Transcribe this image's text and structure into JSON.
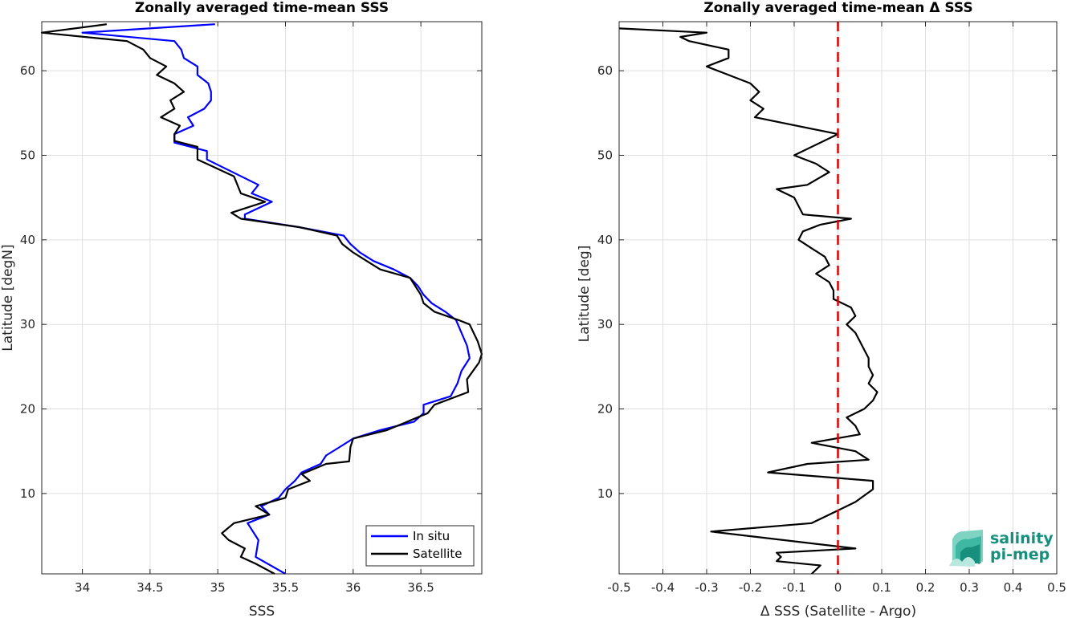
{
  "chart_data": [
    {
      "type": "line",
      "title": "Zonally averaged time-mean SSS",
      "xlabel": "SSS",
      "ylabel": "Latitude [degN]",
      "xlim": [
        33.7,
        36.95
      ],
      "ylim": [
        0.5,
        65.8
      ],
      "xticks": [
        34,
        34.5,
        35,
        35.5,
        36,
        36.5
      ],
      "xtick_labels": [
        "34",
        "34.5",
        "35",
        "35.5",
        "36",
        "36.5"
      ],
      "yticks": [
        10,
        20,
        30,
        40,
        50,
        60
      ],
      "ytick_labels": [
        "10",
        "20",
        "30",
        "40",
        "50",
        "60"
      ],
      "grid": true,
      "legend": {
        "position": "bottom-right",
        "entries": [
          "In situ",
          "Satellite"
        ]
      },
      "series": [
        {
          "name": "In situ",
          "color": "#0000ff",
          "points": [
            [
              35.5,
              0.5
            ],
            [
              35.28,
              2.5
            ],
            [
              35.3,
              4.5
            ],
            [
              35.22,
              6.5
            ],
            [
              35.38,
              7.5
            ],
            [
              35.32,
              8.5
            ],
            [
              35.45,
              9.5
            ],
            [
              35.5,
              10.5
            ],
            [
              35.57,
              11.5
            ],
            [
              35.62,
              12.5
            ],
            [
              35.76,
              13.5
            ],
            [
              35.8,
              14.5
            ],
            [
              35.9,
              15.5
            ],
            [
              36.0,
              16.5
            ],
            [
              36.2,
              17.5
            ],
            [
              36.45,
              18.5
            ],
            [
              36.52,
              19.5
            ],
            [
              36.52,
              20.5
            ],
            [
              36.72,
              21.5
            ],
            [
              36.77,
              23.0
            ],
            [
              36.8,
              24.5
            ],
            [
              36.86,
              26.0
            ],
            [
              36.84,
              27.5
            ],
            [
              36.8,
              29.0
            ],
            [
              36.76,
              30.5
            ],
            [
              36.68,
              31.5
            ],
            [
              36.58,
              32.5
            ],
            [
              36.52,
              33.5
            ],
            [
              36.48,
              34.5
            ],
            [
              36.42,
              35.5
            ],
            [
              36.3,
              36.5
            ],
            [
              36.15,
              37.5
            ],
            [
              36.05,
              38.5
            ],
            [
              35.98,
              39.5
            ],
            [
              35.93,
              40.5
            ],
            [
              35.6,
              41.5
            ],
            [
              35.2,
              42.5
            ],
            [
              35.2,
              43.0
            ],
            [
              35.4,
              44.5
            ],
            [
              35.25,
              45.5
            ],
            [
              35.3,
              46.5
            ],
            [
              34.92,
              49.5
            ],
            [
              34.92,
              50.5
            ],
            [
              34.68,
              51.5
            ],
            [
              34.68,
              52.5
            ],
            [
              34.82,
              53.5
            ],
            [
              34.78,
              54.5
            ],
            [
              34.9,
              55.5
            ],
            [
              34.95,
              56.5
            ],
            [
              34.95,
              57.5
            ],
            [
              34.93,
              58.5
            ],
            [
              34.85,
              59.5
            ],
            [
              34.85,
              60.5
            ],
            [
              34.75,
              61.5
            ],
            [
              34.73,
              62.5
            ],
            [
              34.68,
              63.5
            ],
            [
              34.0,
              64.5
            ],
            [
              34.98,
              65.5
            ]
          ]
        },
        {
          "name": "Satellite",
          "color": "#000000",
          "points": [
            [
              35.42,
              0.5
            ],
            [
              35.28,
              1.7
            ],
            [
              35.17,
              2.5
            ],
            [
              35.2,
              3.5
            ],
            [
              35.08,
              4.5
            ],
            [
              35.03,
              5.3
            ],
            [
              35.12,
              6.5
            ],
            [
              35.38,
              7.5
            ],
            [
              35.28,
              8.5
            ],
            [
              35.5,
              9.5
            ],
            [
              35.52,
              10.5
            ],
            [
              35.68,
              11.5
            ],
            [
              35.62,
              12.3
            ],
            [
              35.8,
              13.5
            ],
            [
              35.97,
              13.8
            ],
            [
              35.98,
              15.5
            ],
            [
              36.0,
              16.5
            ],
            [
              36.25,
              17.5
            ],
            [
              36.4,
              18.5
            ],
            [
              36.55,
              19.5
            ],
            [
              36.6,
              20.5
            ],
            [
              36.85,
              22.0
            ],
            [
              36.84,
              23.5
            ],
            [
              36.93,
              25.5
            ],
            [
              36.95,
              26.5
            ],
            [
              36.92,
              28.0
            ],
            [
              36.86,
              30.0
            ],
            [
              36.78,
              30.5
            ],
            [
              36.6,
              31.5
            ],
            [
              36.52,
              32.5
            ],
            [
              36.5,
              33.5
            ],
            [
              36.42,
              35.5
            ],
            [
              36.2,
              36.5
            ],
            [
              36.1,
              37.5
            ],
            [
              36.0,
              38.5
            ],
            [
              35.92,
              39.5
            ],
            [
              35.88,
              40.5
            ],
            [
              35.6,
              41.5
            ],
            [
              35.17,
              42.5
            ],
            [
              35.1,
              43.2
            ],
            [
              35.35,
              44.5
            ],
            [
              35.17,
              45.5
            ],
            [
              35.12,
              47.5
            ],
            [
              34.85,
              49.5
            ],
            [
              34.85,
              51.0
            ],
            [
              34.68,
              51.7
            ],
            [
              34.68,
              52.5
            ],
            [
              34.72,
              53.5
            ],
            [
              34.58,
              54.5
            ],
            [
              34.68,
              55.5
            ],
            [
              34.65,
              56.5
            ],
            [
              34.75,
              57.5
            ],
            [
              34.68,
              58.5
            ],
            [
              34.55,
              59.5
            ],
            [
              34.62,
              60.5
            ],
            [
              34.5,
              61.5
            ],
            [
              34.45,
              62.5
            ],
            [
              34.33,
              63.5
            ],
            [
              33.7,
              64.5
            ],
            [
              34.18,
              65.5
            ]
          ]
        }
      ]
    },
    {
      "type": "line",
      "title": "Zonally averaged time-mean Δ SSS",
      "xlabel": "Δ SSS (Satellite - Argo)",
      "ylabel": "Latitude [deg]",
      "xlim": [
        -0.5,
        0.5
      ],
      "ylim": [
        0.5,
        65.8
      ],
      "xticks": [
        -0.5,
        -0.4,
        -0.3,
        -0.2,
        -0.1,
        0,
        0.1,
        0.2,
        0.3,
        0.4,
        0.5
      ],
      "xtick_labels": [
        "-0.5",
        "-0.4",
        "-0.3",
        "-0.2",
        "-0.1",
        "0",
        "0.1",
        "0.2",
        "0.3",
        "0.4",
        "0.5"
      ],
      "yticks": [
        10,
        20,
        30,
        40,
        50,
        60
      ],
      "ytick_labels": [
        "10",
        "20",
        "30",
        "40",
        "50",
        "60"
      ],
      "grid": true,
      "reference_line": {
        "x": 0,
        "color": "#e00000",
        "style": "dashed"
      },
      "series": [
        {
          "color": "#000000",
          "points": [
            [
              -0.06,
              0.5
            ],
            [
              -0.04,
              1.5
            ],
            [
              -0.14,
              2.0
            ],
            [
              -0.13,
              2.5
            ],
            [
              -0.14,
              3.0
            ],
            [
              0.04,
              3.5
            ],
            [
              -0.29,
              5.5
            ],
            [
              -0.06,
              6.5
            ],
            [
              -0.02,
              7.5
            ],
            [
              0.0,
              8.0
            ],
            [
              0.04,
              9.0
            ],
            [
              0.08,
              10.5
            ],
            [
              0.08,
              11.5
            ],
            [
              -0.16,
              12.5
            ],
            [
              -0.07,
              13.5
            ],
            [
              0.07,
              14.0
            ],
            [
              0.04,
              15.0
            ],
            [
              -0.06,
              16.0
            ],
            [
              0.05,
              17.0
            ],
            [
              0.04,
              18.0
            ],
            [
              0.02,
              19.0
            ],
            [
              0.06,
              20.0
            ],
            [
              0.08,
              21.0
            ],
            [
              0.09,
              22.0
            ],
            [
              0.07,
              23.0
            ],
            [
              0.08,
              24.0
            ],
            [
              0.07,
              25.0
            ],
            [
              0.07,
              26.0
            ],
            [
              0.06,
              27.0
            ],
            [
              0.05,
              28.0
            ],
            [
              0.04,
              29.0
            ],
            [
              0.02,
              30.0
            ],
            [
              0.04,
              31.0
            ],
            [
              0.03,
              32.0
            ],
            [
              -0.01,
              33.0
            ],
            [
              -0.01,
              34.0
            ],
            [
              -0.02,
              35.0
            ],
            [
              -0.05,
              36.0
            ],
            [
              -0.02,
              37.0
            ],
            [
              -0.03,
              38.0
            ],
            [
              -0.06,
              39.0
            ],
            [
              -0.09,
              40.0
            ],
            [
              -0.08,
              41.0
            ],
            [
              -0.04,
              41.8
            ],
            [
              0.03,
              42.5
            ],
            [
              -0.08,
              43.0
            ],
            [
              -0.09,
              44.0
            ],
            [
              -0.1,
              45.0
            ],
            [
              -0.14,
              46.0
            ],
            [
              -0.07,
              46.5
            ],
            [
              -0.02,
              48.0
            ],
            [
              -0.05,
              49.0
            ],
            [
              -0.1,
              50.0
            ],
            [
              0.0,
              52.5
            ],
            [
              -0.19,
              54.5
            ],
            [
              -0.17,
              55.5
            ],
            [
              -0.2,
              56.5
            ],
            [
              -0.18,
              57.5
            ],
            [
              -0.2,
              58.5
            ],
            [
              -0.25,
              59.5
            ],
            [
              -0.3,
              60.5
            ],
            [
              -0.25,
              61.5
            ],
            [
              -0.25,
              62.5
            ],
            [
              -0.34,
              63.5
            ],
            [
              -0.36,
              64.0
            ],
            [
              -0.3,
              64.5
            ],
            [
              -0.5,
              65.0
            ]
          ]
        }
      ]
    }
  ],
  "logo": {
    "line1": "salinity",
    "line2": "pi-mep",
    "color": "#178f7c"
  }
}
